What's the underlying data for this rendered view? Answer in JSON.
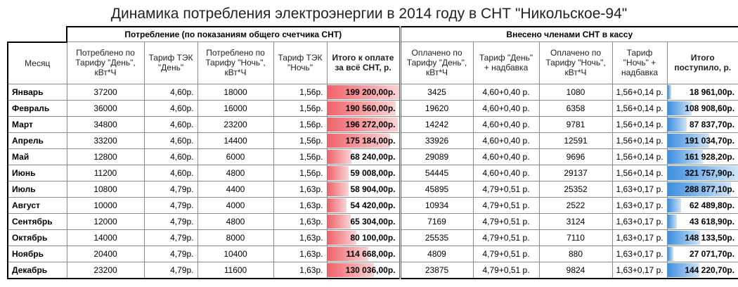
{
  "title": "Динамика потребления электроэнергии в 2014 году в СНТ \"Никольское-94\"",
  "groups": {
    "consumption": "Потребление (по показаниям общего счетчика СНТ)",
    "paid": "Внесено членами СНТ в кассу"
  },
  "headers": {
    "month": "Месяц",
    "used_day": "Потреблено по Тарифу \"День\", кВт*Ч",
    "tariff_day": "Тариф ТЭК \"День\"",
    "used_night": "Потреблено по Тарифу \"Ночь\", кВт*Ч",
    "tariff_night": "Тариф ТЭК \"Ночь\"",
    "total_due": "Итого к оплате за всё СНТ, р.",
    "paid_day": "Оплачено по Тарифу \"День\", кВт*Ч",
    "tariff_day_plus": "Тариф \"День\" + надбавка",
    "paid_night": "Оплачено по Тарифу \"Ночь\", кВт*Ч",
    "tariff_night_plus": "Тариф \"Ночь\" + надбавка",
    "total_received": "Итого поступило, р."
  },
  "rows": [
    {
      "month": "Январь",
      "used_day": "37200",
      "tariff_day": "4,60р.",
      "used_night": "18000",
      "tariff_night": "1,56р.",
      "total_due": "199 200,00р.",
      "due_value": 199200,
      "paid_day": "3425",
      "tariff_day_plus": "4,60+0,40 р.",
      "paid_night": "1080",
      "tariff_night_plus": "1,56+0,14 р.",
      "total_received": "18 961,00р.",
      "received_value": 18961
    },
    {
      "month": "Февраль",
      "used_day": "36000",
      "tariff_day": "4,60р.",
      "used_night": "16000",
      "tariff_night": "1,56р.",
      "total_due": "190 560,00р.",
      "due_value": 190560,
      "paid_day": "19620",
      "tariff_day_plus": "4,60+0,40 р.",
      "paid_night": "6358",
      "tariff_night_plus": "1,56+0,14 р.",
      "total_received": "108 908,60р.",
      "received_value": 108908.6
    },
    {
      "month": "Март",
      "used_day": "34800",
      "tariff_day": "4,60р.",
      "used_night": "23200",
      "tariff_night": "1,56р.",
      "total_due": "196 272,00р.",
      "due_value": 196272,
      "paid_day": "14242",
      "tariff_day_plus": "4,60+0,40 р.",
      "paid_night": "9781",
      "tariff_night_plus": "1,56+0,14 р.",
      "total_received": "87 837,70р.",
      "received_value": 87837.7
    },
    {
      "month": "Апрель",
      "used_day": "33200",
      "tariff_day": "4,60р.",
      "used_night": "14400",
      "tariff_night": "1,56р.",
      "total_due": "175 184,00р.",
      "due_value": 175184,
      "paid_day": "33926",
      "tariff_day_plus": "4,60+0,40 р.",
      "paid_night": "12591",
      "tariff_night_plus": "1,56+0,14 р.",
      "total_received": "191 034,70р.",
      "received_value": 191034.7
    },
    {
      "month": "Май",
      "used_day": "12800",
      "tariff_day": "4,60р.",
      "used_night": "6000",
      "tariff_night": "1,56р.",
      "total_due": "68 240,00р.",
      "due_value": 68240,
      "paid_day": "29089",
      "tariff_day_plus": "4,60+0,40 р.",
      "paid_night": "9696",
      "tariff_night_plus": "1,56+0,14 р.",
      "total_received": "161 928,20р.",
      "received_value": 161928.2
    },
    {
      "month": "Июнь",
      "used_day": "11200",
      "tariff_day": "4,60р.",
      "used_night": "4800",
      "tariff_night": "1,56р.",
      "total_due": "59 008,00р.",
      "due_value": 59008,
      "paid_day": "54445",
      "tariff_day_plus": "4,60+0,40 р.",
      "paid_night": "29137",
      "tariff_night_plus": "1,56+0,14 р.",
      "total_received": "321 757,90р.",
      "received_value": 321757.9
    },
    {
      "month": "Июль",
      "used_day": "10800",
      "tariff_day": "4,79р.",
      "used_night": "4400",
      "tariff_night": "1,63р.",
      "total_due": "58 904,00р.",
      "due_value": 58904,
      "paid_day": "45895",
      "tariff_day_plus": "4,79+0,51 р.",
      "paid_night": "25352",
      "tariff_night_plus": "1,63+0,17 р.",
      "total_received": "288 877,10р.",
      "received_value": 288877.1
    },
    {
      "month": "Август",
      "used_day": "10000",
      "tariff_day": "4,79р.",
      "used_night": "4000",
      "tariff_night": "1,63р.",
      "total_due": "54 420,00р.",
      "due_value": 54420,
      "paid_day": "10934",
      "tariff_day_plus": "4,79+0,51 р.",
      "paid_night": "2522",
      "tariff_night_plus": "1,63+0,17 р.",
      "total_received": "62 489,80р.",
      "received_value": 62489.8
    },
    {
      "month": "Сентябрь",
      "used_day": "12000",
      "tariff_day": "4,79р.",
      "used_night": "4800",
      "tariff_night": "1,63р.",
      "total_due": "65 304,00р.",
      "due_value": 65304,
      "paid_day": "7169",
      "tariff_day_plus": "4,79+0,51 р.",
      "paid_night": "3124",
      "tariff_night_plus": "1,63+0,17 р.",
      "total_received": "43 618,90р.",
      "received_value": 43618.9
    },
    {
      "month": "Октябрь",
      "used_day": "14000",
      "tariff_day": "4,79р.",
      "used_night": "8000",
      "tariff_night": "1,63р.",
      "total_due": "80 100,00р.",
      "due_value": 80100,
      "paid_day": "25535",
      "tariff_day_plus": "4,79+0,51 р.",
      "paid_night": "7110",
      "tariff_night_plus": "1,63+0,17 р.",
      "total_received": "148 133,50р.",
      "received_value": 148133.5
    },
    {
      "month": "Ноябрь",
      "used_day": "20400",
      "tariff_day": "4,79р.",
      "used_night": "10400",
      "tariff_night": "1,63р.",
      "total_due": "114 668,00р.",
      "due_value": 114668,
      "paid_day": "4809",
      "tariff_day_plus": "4,79+0,51 р.",
      "paid_night": "880",
      "tariff_night_plus": "1,63+0,17 р.",
      "total_received": "27 071,70р.",
      "received_value": 27071.7
    },
    {
      "month": "Декабрь",
      "used_day": "23200",
      "tariff_day": "4,79р.",
      "used_night": "11600",
      "tariff_night": "1,63р.",
      "total_due": "130 036,00р.",
      "due_value": 130036,
      "paid_day": "23875",
      "tariff_day_plus": "4,79+0,51 р.",
      "paid_night": "9824",
      "tariff_night_plus": "1,63+0,17 р.",
      "total_received": "144 220,70р.",
      "received_value": 144220.7
    }
  ],
  "colors": {
    "due_bar": "#f0636a",
    "received_bar": "#3c8fe0"
  }
}
